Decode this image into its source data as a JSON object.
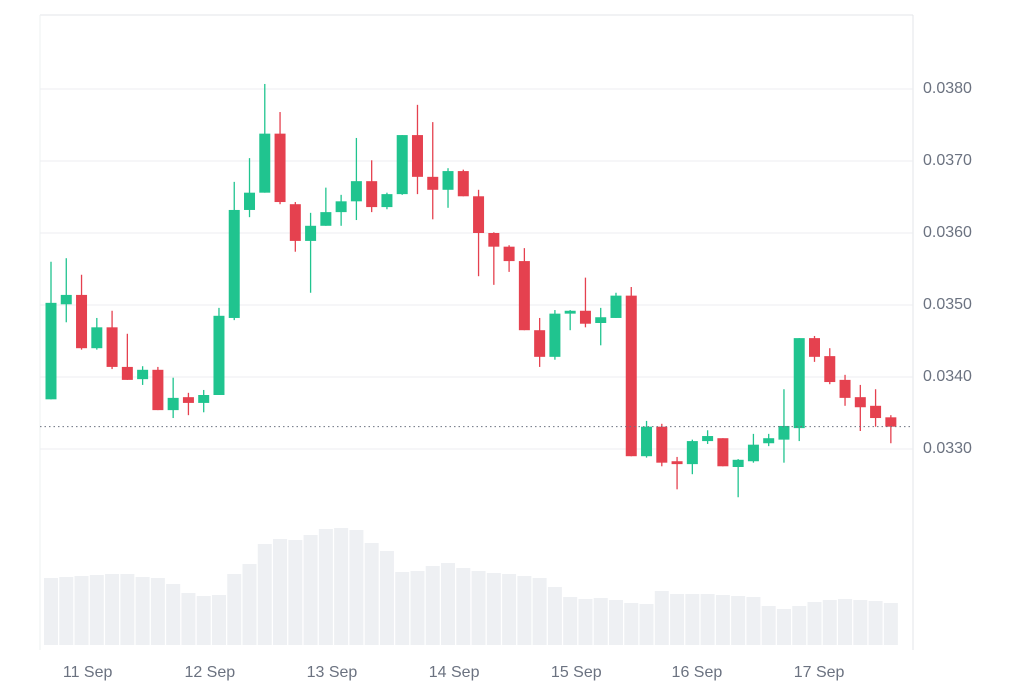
{
  "chart_data": {
    "type": "candlestick",
    "open": [
      0.03369,
      0.03501,
      0.03514,
      0.0344,
      0.03469,
      0.03414,
      0.03397,
      0.0341,
      0.03354,
      0.03372,
      0.03364,
      0.03375,
      0.03482,
      0.03632,
      0.03656,
      0.03738,
      0.0364,
      0.03589,
      0.0361,
      0.03629,
      0.03644,
      0.03672,
      0.03636,
      0.03654,
      0.03736,
      0.03678,
      0.0366,
      0.03686,
      0.03651,
      0.036,
      0.03581,
      0.03561,
      0.03465,
      0.03428,
      0.03488,
      0.03492,
      0.03475,
      0.03482,
      0.03513,
      0.0329,
      0.03331,
      0.03283,
      0.03279,
      0.03311,
      0.03315,
      0.03275,
      0.03283,
      0.03308,
      0.03313,
      0.03329,
      0.03454,
      0.03429,
      0.03396,
      0.03372,
      0.0336,
      0.03344
    ],
    "high": [
      0.0356,
      0.03565,
      0.03542,
      0.03482,
      0.03492,
      0.0346,
      0.03415,
      0.03414,
      0.03399,
      0.03378,
      0.03382,
      0.03496,
      0.03671,
      0.03704,
      0.03807,
      0.03768,
      0.03643,
      0.03628,
      0.03663,
      0.03653,
      0.03732,
      0.03701,
      0.03656,
      0.03736,
      0.03778,
      0.03754,
      0.0369,
      0.03688,
      0.0366,
      0.03601,
      0.03583,
      0.03579,
      0.03482,
      0.03493,
      0.03493,
      0.03538,
      0.03496,
      0.03517,
      0.03525,
      0.03339,
      0.03335,
      0.03289,
      0.03313,
      0.03326,
      0.03315,
      0.03286,
      0.03321,
      0.03321,
      0.03383,
      0.03454,
      0.03457,
      0.0344,
      0.03403,
      0.03389,
      0.03383,
      0.03347
    ],
    "low": [
      0.03369,
      0.03476,
      0.03438,
      0.03438,
      0.03411,
      0.03396,
      0.03389,
      0.03354,
      0.03343,
      0.03347,
      0.03351,
      0.03375,
      0.03479,
      0.03622,
      0.03656,
      0.0364,
      0.03574,
      0.03517,
      0.0361,
      0.0361,
      0.03618,
      0.03629,
      0.03633,
      0.03653,
      0.03654,
      0.03619,
      0.03635,
      0.03651,
      0.0354,
      0.03528,
      0.03546,
      0.03465,
      0.03414,
      0.03424,
      0.03465,
      0.03469,
      0.03444,
      0.03482,
      0.0329,
      0.03288,
      0.03276,
      0.03244,
      0.03265,
      0.03307,
      0.03276,
      0.03233,
      0.03281,
      0.03304,
      0.03281,
      0.03311,
      0.03421,
      0.0339,
      0.0336,
      0.03325,
      0.03331,
      0.03308
    ],
    "close": [
      0.03503,
      0.03514,
      0.0344,
      0.03469,
      0.03414,
      0.03396,
      0.0341,
      0.03354,
      0.03371,
      0.03364,
      0.03375,
      0.03485,
      0.03632,
      0.03656,
      0.03738,
      0.03643,
      0.03589,
      0.0361,
      0.03629,
      0.03644,
      0.03672,
      0.03636,
      0.03654,
      0.03736,
      0.03678,
      0.0366,
      0.03686,
      0.03651,
      0.036,
      0.03581,
      0.03561,
      0.03465,
      0.03428,
      0.03488,
      0.03492,
      0.03474,
      0.03483,
      0.03513,
      0.0329,
      0.03331,
      0.03281,
      0.03279,
      0.03311,
      0.03318,
      0.03276,
      0.03285,
      0.03306,
      0.03315,
      0.03332,
      0.03454,
      0.03428,
      0.03393,
      0.03371,
      0.03358,
      0.03343,
      0.03331
    ],
    "volume": [
      67,
      68,
      69,
      70,
      71,
      71,
      68,
      67,
      61,
      52,
      49,
      50,
      71,
      81,
      101,
      106,
      105,
      110,
      116,
      117,
      115,
      102,
      94,
      73,
      74,
      79,
      82,
      77,
      74,
      72,
      71,
      69,
      67,
      58,
      48,
      46,
      47,
      45,
      42,
      41,
      54,
      51,
      51,
      51,
      50,
      49,
      48,
      39,
      36,
      39,
      43,
      45,
      46,
      45,
      44,
      42
    ],
    "up_color": "#20c48f",
    "down_color": "#e5414f",
    "volume_color": "#eef0f3",
    "ylim": [
      0.0302,
      0.039
    ],
    "yticks": [
      {
        "value": 0.033,
        "label": "0.0330"
      },
      {
        "value": 0.034,
        "label": "0.0340"
      },
      {
        "value": 0.035,
        "label": "0.0350"
      },
      {
        "value": 0.036,
        "label": "0.0360"
      },
      {
        "value": 0.037,
        "label": "0.0370"
      },
      {
        "value": 0.038,
        "label": "0.0380"
      }
    ],
    "xticks": [
      {
        "value": 2.4,
        "label": "11 Sep"
      },
      {
        "value": 10.4,
        "label": "12 Sep"
      },
      {
        "value": 18.4,
        "label": "13 Sep"
      },
      {
        "value": 26.4,
        "label": "14 Sep"
      },
      {
        "value": 34.4,
        "label": "15 Sep"
      },
      {
        "value": 42.3,
        "label": "16 Sep"
      },
      {
        "value": 50.3,
        "label": "17 Sep"
      }
    ],
    "grid": true
  }
}
